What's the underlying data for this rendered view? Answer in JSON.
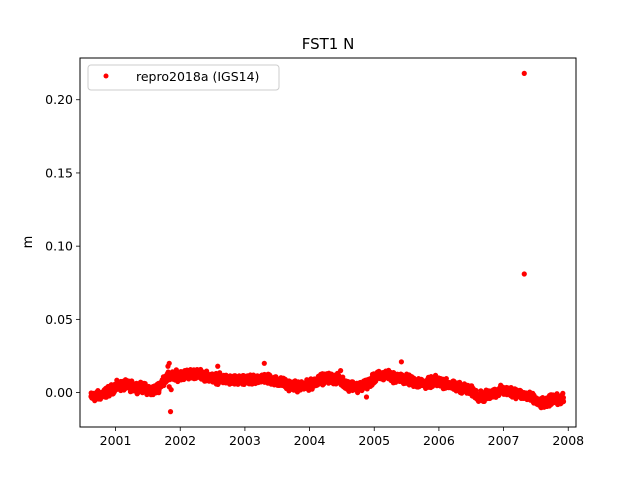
{
  "chart_data": {
    "type": "scatter",
    "title": "FST1 N",
    "xlabel": "",
    "ylabel": "m",
    "xlim": [
      2000.45,
      2008.12
    ],
    "ylim": [
      -0.0235,
      0.2285
    ],
    "x_ticks": [
      2001,
      2002,
      2003,
      2004,
      2005,
      2006,
      2007,
      2008
    ],
    "x_tick_labels": [
      "2001",
      "2002",
      "2003",
      "2004",
      "2005",
      "2006",
      "2007",
      "2008"
    ],
    "y_ticks": [
      0.0,
      0.05,
      0.1,
      0.15,
      0.2
    ],
    "y_tick_labels": [
      "0.00",
      "0.05",
      "0.10",
      "0.15",
      "0.20"
    ],
    "grid": false,
    "legend_position": "top-left",
    "series": [
      {
        "name": "repro2018a (IGS14)",
        "color": "#ff0000",
        "marker": "circle",
        "trend": [
          [
            2000.62,
            -0.003
          ],
          [
            2000.75,
            -0.002
          ],
          [
            2000.9,
            0.001
          ],
          [
            2001.0,
            0.004
          ],
          [
            2001.15,
            0.005
          ],
          [
            2001.3,
            0.004
          ],
          [
            2001.45,
            0.003
          ],
          [
            2001.55,
            0.001
          ],
          [
            2001.65,
            0.003
          ],
          [
            2001.75,
            0.009
          ],
          [
            2001.85,
            0.011
          ],
          [
            2002.0,
            0.012
          ],
          [
            2002.2,
            0.013
          ],
          [
            2002.35,
            0.012
          ],
          [
            2002.5,
            0.01
          ],
          [
            2002.7,
            0.009
          ],
          [
            2002.9,
            0.008
          ],
          [
            2003.1,
            0.008
          ],
          [
            2003.25,
            0.01
          ],
          [
            2003.4,
            0.009
          ],
          [
            2003.55,
            0.007
          ],
          [
            2003.7,
            0.005
          ],
          [
            2003.85,
            0.004
          ],
          [
            2004.0,
            0.005
          ],
          [
            2004.15,
            0.009
          ],
          [
            2004.3,
            0.01
          ],
          [
            2004.45,
            0.009
          ],
          [
            2004.6,
            0.005
          ],
          [
            2004.75,
            0.004
          ],
          [
            2004.9,
            0.006
          ],
          [
            2005.05,
            0.011
          ],
          [
            2005.2,
            0.012
          ],
          [
            2005.35,
            0.01
          ],
          [
            2005.5,
            0.009
          ],
          [
            2005.65,
            0.007
          ],
          [
            2005.8,
            0.006
          ],
          [
            2005.95,
            0.008
          ],
          [
            2006.1,
            0.006
          ],
          [
            2006.25,
            0.004
          ],
          [
            2006.4,
            0.003
          ],
          [
            2006.5,
            0.001
          ],
          [
            2006.6,
            -0.002
          ],
          [
            2006.7,
            -0.003
          ],
          [
            2006.8,
            -0.001
          ],
          [
            2006.95,
            0.001
          ],
          [
            2007.1,
            0.001
          ],
          [
            2007.25,
            -0.001
          ],
          [
            2007.4,
            -0.003
          ],
          [
            2007.55,
            -0.007
          ],
          [
            2007.65,
            -0.008
          ],
          [
            2007.75,
            -0.004
          ],
          [
            2007.85,
            -0.005
          ],
          [
            2007.93,
            -0.004
          ]
        ],
        "outliers": [
          [
            2007.32,
            0.218
          ],
          [
            2007.32,
            0.081
          ],
          [
            2001.85,
            -0.013
          ],
          [
            2001.83,
            0.02
          ],
          [
            2001.81,
            0.018
          ],
          [
            2003.3,
            0.02
          ],
          [
            2002.58,
            0.018
          ],
          [
            2005.42,
            0.021
          ],
          [
            2004.48,
            0.015
          ],
          [
            2004.88,
            -0.003
          ],
          [
            2001.83,
            0.004
          ],
          [
            2001.86,
            0.002
          ]
        ]
      }
    ]
  }
}
